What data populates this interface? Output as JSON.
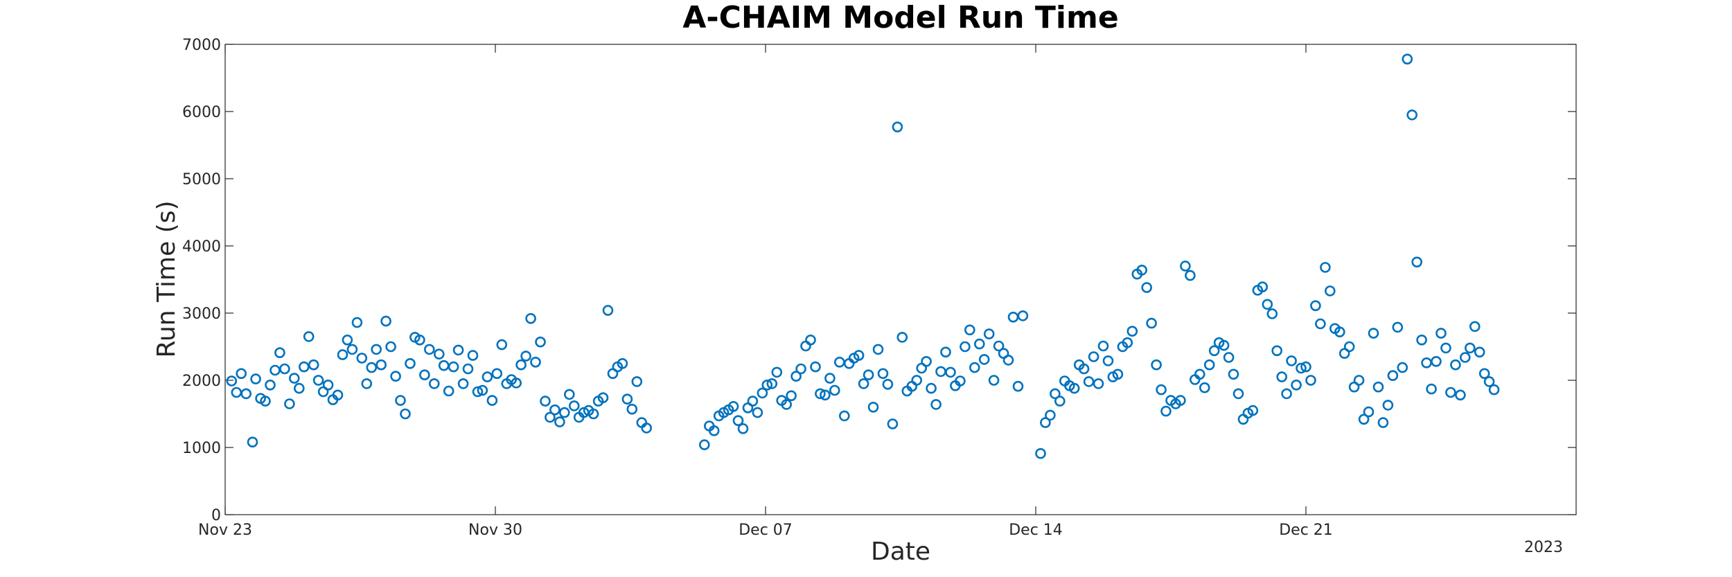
{
  "chart_data": {
    "type": "scatter",
    "title": "A-CHAIM Model Run Time",
    "xlabel": "Date",
    "ylabel": "Run Time (s)",
    "x_axis_type": "date",
    "xlim": [
      "2022-11-23 00:00",
      "2022-12-28 00:00"
    ],
    "ylim": [
      0,
      7000
    ],
    "xticks": [
      "Nov 23",
      "Nov 30",
      "Dec 07",
      "Dec 14",
      "Dec 21"
    ],
    "xtick_dates": [
      "2022-11-23",
      "2022-11-30",
      "2022-12-07",
      "2022-12-14",
      "2022-12-21"
    ],
    "yticks": [
      0,
      1000,
      2000,
      3000,
      4000,
      5000,
      6000,
      7000
    ],
    "year_label": "2023",
    "grid": false,
    "legend": "none",
    "marker_color": "#0072BD",
    "series": [
      {
        "values": [
          [
            "2022-11-23 04:00",
            1990
          ],
          [
            "2022-11-23 07:00",
            1820
          ],
          [
            "2022-11-23 10:00",
            2100
          ],
          [
            "2022-11-23 13:00",
            1800
          ],
          [
            "2022-11-23 17:00",
            1080
          ],
          [
            "2022-11-23 19:00",
            2020
          ],
          [
            "2022-11-23 22:00",
            1730
          ],
          [
            "2022-11-24 01:00",
            1690
          ],
          [
            "2022-11-24 04:00",
            1930
          ],
          [
            "2022-11-24 07:00",
            2150
          ],
          [
            "2022-11-24 10:00",
            2410
          ],
          [
            "2022-11-24 13:00",
            2170
          ],
          [
            "2022-11-24 16:00",
            1650
          ],
          [
            "2022-11-24 19:00",
            2030
          ],
          [
            "2022-11-24 22:00",
            1880
          ],
          [
            "2022-11-25 01:00",
            2200
          ],
          [
            "2022-11-25 04:00",
            2650
          ],
          [
            "2022-11-25 07:00",
            2230
          ],
          [
            "2022-11-25 10:00",
            2000
          ],
          [
            "2022-11-25 13:00",
            1830
          ],
          [
            "2022-11-25 16:00",
            1930
          ],
          [
            "2022-11-25 19:00",
            1710
          ],
          [
            "2022-11-25 22:00",
            1780
          ],
          [
            "2022-11-26 01:00",
            2380
          ],
          [
            "2022-11-26 04:00",
            2600
          ],
          [
            "2022-11-26 07:00",
            2460
          ],
          [
            "2022-11-26 10:00",
            2860
          ],
          [
            "2022-11-26 13:00",
            2330
          ],
          [
            "2022-11-26 16:00",
            1950
          ],
          [
            "2022-11-26 19:00",
            2190
          ],
          [
            "2022-11-26 22:00",
            2460
          ],
          [
            "2022-11-27 01:00",
            2230
          ],
          [
            "2022-11-27 04:00",
            2880
          ],
          [
            "2022-11-27 07:00",
            2500
          ],
          [
            "2022-11-27 10:00",
            2060
          ],
          [
            "2022-11-27 13:00",
            1700
          ],
          [
            "2022-11-27 16:00",
            1500
          ],
          [
            "2022-11-27 19:00",
            2250
          ],
          [
            "2022-11-27 22:00",
            2640
          ],
          [
            "2022-11-28 01:00",
            2600
          ],
          [
            "2022-11-28 04:00",
            2080
          ],
          [
            "2022-11-28 07:00",
            2460
          ],
          [
            "2022-11-28 10:00",
            1950
          ],
          [
            "2022-11-28 13:00",
            2390
          ],
          [
            "2022-11-28 16:00",
            2220
          ],
          [
            "2022-11-28 19:00",
            1840
          ],
          [
            "2022-11-28 22:00",
            2200
          ],
          [
            "2022-11-29 01:00",
            2450
          ],
          [
            "2022-11-29 04:00",
            1950
          ],
          [
            "2022-11-29 07:00",
            2170
          ],
          [
            "2022-11-29 10:00",
            2370
          ],
          [
            "2022-11-29 13:00",
            1830
          ],
          [
            "2022-11-29 16:00",
            1850
          ],
          [
            "2022-11-29 19:00",
            2050
          ],
          [
            "2022-11-29 22:00",
            1700
          ],
          [
            "2022-11-30 01:00",
            2100
          ],
          [
            "2022-11-30 04:00",
            2530
          ],
          [
            "2022-11-30 07:00",
            1950
          ],
          [
            "2022-11-30 10:00",
            2010
          ],
          [
            "2022-11-30 13:00",
            1960
          ],
          [
            "2022-11-30 16:00",
            2230
          ],
          [
            "2022-11-30 19:00",
            2360
          ],
          [
            "2022-11-30 22:00",
            2920
          ],
          [
            "2022-12-01 01:00",
            2270
          ],
          [
            "2022-12-01 04:00",
            2570
          ],
          [
            "2022-12-01 07:00",
            1690
          ],
          [
            "2022-12-01 10:00",
            1450
          ],
          [
            "2022-12-01 13:00",
            1560
          ],
          [
            "2022-12-01 16:00",
            1380
          ],
          [
            "2022-12-01 19:00",
            1520
          ],
          [
            "2022-12-01 22:00",
            1790
          ],
          [
            "2022-12-02 01:00",
            1620
          ],
          [
            "2022-12-02 04:00",
            1450
          ],
          [
            "2022-12-02 07:00",
            1520
          ],
          [
            "2022-12-02 10:00",
            1550
          ],
          [
            "2022-12-02 13:00",
            1500
          ],
          [
            "2022-12-02 16:00",
            1690
          ],
          [
            "2022-12-02 19:00",
            1740
          ],
          [
            "2022-12-02 22:00",
            3040
          ],
          [
            "2022-12-03 01:00",
            2100
          ],
          [
            "2022-12-03 04:00",
            2200
          ],
          [
            "2022-12-03 07:00",
            2250
          ],
          [
            "2022-12-03 10:00",
            1720
          ],
          [
            "2022-12-03 13:00",
            1570
          ],
          [
            "2022-12-03 16:00",
            1980
          ],
          [
            "2022-12-03 19:00",
            1370
          ],
          [
            "2022-12-03 22:00",
            1290
          ],
          [
            "2022-12-05 10:00",
            1040
          ],
          [
            "2022-12-05 13:00",
            1320
          ],
          [
            "2022-12-05 16:00",
            1250
          ],
          [
            "2022-12-05 19:00",
            1470
          ],
          [
            "2022-12-05 22:00",
            1520
          ],
          [
            "2022-12-06 01:00",
            1560
          ],
          [
            "2022-12-06 04:00",
            1610
          ],
          [
            "2022-12-06 07:00",
            1400
          ],
          [
            "2022-12-06 10:00",
            1280
          ],
          [
            "2022-12-06 13:00",
            1590
          ],
          [
            "2022-12-06 16:00",
            1690
          ],
          [
            "2022-12-06 19:00",
            1520
          ],
          [
            "2022-12-06 22:00",
            1810
          ],
          [
            "2022-12-07 01:00",
            1930
          ],
          [
            "2022-12-07 04:00",
            1950
          ],
          [
            "2022-12-07 07:00",
            2120
          ],
          [
            "2022-12-07 10:00",
            1700
          ],
          [
            "2022-12-07 13:00",
            1640
          ],
          [
            "2022-12-07 16:00",
            1770
          ],
          [
            "2022-12-07 19:00",
            2060
          ],
          [
            "2022-12-07 22:00",
            2170
          ],
          [
            "2022-12-08 01:00",
            2510
          ],
          [
            "2022-12-08 04:00",
            2600
          ],
          [
            "2022-12-08 07:00",
            2200
          ],
          [
            "2022-12-08 10:00",
            1800
          ],
          [
            "2022-12-08 13:00",
            1780
          ],
          [
            "2022-12-08 16:00",
            2030
          ],
          [
            "2022-12-08 19:00",
            1850
          ],
          [
            "2022-12-08 22:00",
            2270
          ],
          [
            "2022-12-09 01:00",
            1470
          ],
          [
            "2022-12-09 04:00",
            2250
          ],
          [
            "2022-12-09 07:00",
            2330
          ],
          [
            "2022-12-09 10:00",
            2370
          ],
          [
            "2022-12-09 13:00",
            1950
          ],
          [
            "2022-12-09 16:00",
            2080
          ],
          [
            "2022-12-09 19:00",
            1600
          ],
          [
            "2022-12-09 22:00",
            2460
          ],
          [
            "2022-12-10 01:00",
            2100
          ],
          [
            "2022-12-10 04:00",
            1940
          ],
          [
            "2022-12-10 07:00",
            1350
          ],
          [
            "2022-12-10 10:00",
            5770
          ],
          [
            "2022-12-10 13:00",
            2640
          ],
          [
            "2022-12-10 16:00",
            1840
          ],
          [
            "2022-12-10 19:00",
            1910
          ],
          [
            "2022-12-10 22:00",
            2000
          ],
          [
            "2022-12-11 01:00",
            2180
          ],
          [
            "2022-12-11 04:00",
            2280
          ],
          [
            "2022-12-11 07:00",
            1880
          ],
          [
            "2022-12-11 10:00",
            1640
          ],
          [
            "2022-12-11 13:00",
            2130
          ],
          [
            "2022-12-11 16:00",
            2420
          ],
          [
            "2022-12-11 19:00",
            2120
          ],
          [
            "2022-12-11 22:00",
            1920
          ],
          [
            "2022-12-12 01:00",
            1990
          ],
          [
            "2022-12-12 04:00",
            2500
          ],
          [
            "2022-12-12 07:00",
            2750
          ],
          [
            "2022-12-12 10:00",
            2190
          ],
          [
            "2022-12-12 13:00",
            2540
          ],
          [
            "2022-12-12 16:00",
            2310
          ],
          [
            "2022-12-12 19:00",
            2690
          ],
          [
            "2022-12-12 22:00",
            2000
          ],
          [
            "2022-12-13 01:00",
            2510
          ],
          [
            "2022-12-13 04:00",
            2400
          ],
          [
            "2022-12-13 07:00",
            2300
          ],
          [
            "2022-12-13 10:00",
            2940
          ],
          [
            "2022-12-13 13:00",
            1910
          ],
          [
            "2022-12-13 16:00",
            2960
          ],
          [
            "2022-12-14 03:00",
            910
          ],
          [
            "2022-12-14 06:00",
            1370
          ],
          [
            "2022-12-14 09:00",
            1480
          ],
          [
            "2022-12-14 12:00",
            1800
          ],
          [
            "2022-12-14 15:00",
            1690
          ],
          [
            "2022-12-14 18:00",
            1990
          ],
          [
            "2022-12-14 21:00",
            1920
          ],
          [
            "2022-12-15 00:00",
            1880
          ],
          [
            "2022-12-15 03:00",
            2230
          ],
          [
            "2022-12-15 06:00",
            2170
          ],
          [
            "2022-12-15 09:00",
            1980
          ],
          [
            "2022-12-15 12:00",
            2350
          ],
          [
            "2022-12-15 15:00",
            1950
          ],
          [
            "2022-12-15 18:00",
            2510
          ],
          [
            "2022-12-15 21:00",
            2290
          ],
          [
            "2022-12-16 00:00",
            2050
          ],
          [
            "2022-12-16 03:00",
            2090
          ],
          [
            "2022-12-16 06:00",
            2500
          ],
          [
            "2022-12-16 09:00",
            2560
          ],
          [
            "2022-12-16 12:00",
            2730
          ],
          [
            "2022-12-16 15:00",
            3580
          ],
          [
            "2022-12-16 18:00",
            3640
          ],
          [
            "2022-12-16 21:00",
            3380
          ],
          [
            "2022-12-17 00:00",
            2850
          ],
          [
            "2022-12-17 03:00",
            2230
          ],
          [
            "2022-12-17 06:00",
            1860
          ],
          [
            "2022-12-17 09:00",
            1540
          ],
          [
            "2022-12-17 12:00",
            1700
          ],
          [
            "2022-12-17 15:00",
            1650
          ],
          [
            "2022-12-17 18:00",
            1700
          ],
          [
            "2022-12-17 21:00",
            3700
          ],
          [
            "2022-12-18 00:00",
            3560
          ],
          [
            "2022-12-18 03:00",
            2010
          ],
          [
            "2022-12-18 06:00",
            2090
          ],
          [
            "2022-12-18 09:00",
            1890
          ],
          [
            "2022-12-18 12:00",
            2230
          ],
          [
            "2022-12-18 15:00",
            2440
          ],
          [
            "2022-12-18 18:00",
            2560
          ],
          [
            "2022-12-18 21:00",
            2520
          ],
          [
            "2022-12-19 00:00",
            2340
          ],
          [
            "2022-12-19 03:00",
            2090
          ],
          [
            "2022-12-19 06:00",
            1800
          ],
          [
            "2022-12-19 09:00",
            1420
          ],
          [
            "2022-12-19 12:00",
            1510
          ],
          [
            "2022-12-19 15:00",
            1550
          ],
          [
            "2022-12-19 18:00",
            3340
          ],
          [
            "2022-12-19 21:00",
            3390
          ],
          [
            "2022-12-20 00:00",
            3130
          ],
          [
            "2022-12-20 03:00",
            2990
          ],
          [
            "2022-12-20 06:00",
            2440
          ],
          [
            "2022-12-20 09:00",
            2050
          ],
          [
            "2022-12-20 12:00",
            1800
          ],
          [
            "2022-12-20 15:00",
            2290
          ],
          [
            "2022-12-20 18:00",
            1930
          ],
          [
            "2022-12-20 21:00",
            2180
          ],
          [
            "2022-12-21 00:00",
            2200
          ],
          [
            "2022-12-21 03:00",
            2000
          ],
          [
            "2022-12-21 06:00",
            3110
          ],
          [
            "2022-12-21 09:00",
            2840
          ],
          [
            "2022-12-21 12:00",
            3680
          ],
          [
            "2022-12-21 15:00",
            3330
          ],
          [
            "2022-12-21 18:00",
            2770
          ],
          [
            "2022-12-21 21:00",
            2720
          ],
          [
            "2022-12-22 00:00",
            2400
          ],
          [
            "2022-12-22 03:00",
            2500
          ],
          [
            "2022-12-22 06:00",
            1900
          ],
          [
            "2022-12-22 09:00",
            2000
          ],
          [
            "2022-12-22 12:00",
            1420
          ],
          [
            "2022-12-22 15:00",
            1530
          ],
          [
            "2022-12-22 18:00",
            2700
          ],
          [
            "2022-12-22 21:00",
            1900
          ],
          [
            "2022-12-23 00:00",
            1370
          ],
          [
            "2022-12-23 03:00",
            1630
          ],
          [
            "2022-12-23 06:00",
            2070
          ],
          [
            "2022-12-23 09:00",
            2790
          ],
          [
            "2022-12-23 12:00",
            2190
          ],
          [
            "2022-12-23 15:00",
            6780
          ],
          [
            "2022-12-23 18:00",
            5950
          ],
          [
            "2022-12-23 21:00",
            3760
          ],
          [
            "2022-12-24 00:00",
            2600
          ],
          [
            "2022-12-24 03:00",
            2260
          ],
          [
            "2022-12-24 06:00",
            1870
          ],
          [
            "2022-12-24 09:00",
            2280
          ],
          [
            "2022-12-24 12:00",
            2700
          ],
          [
            "2022-12-24 15:00",
            2480
          ],
          [
            "2022-12-24 18:00",
            1820
          ],
          [
            "2022-12-24 21:00",
            2230
          ],
          [
            "2022-12-25 00:00",
            1780
          ],
          [
            "2022-12-25 03:00",
            2340
          ],
          [
            "2022-12-25 06:00",
            2480
          ],
          [
            "2022-12-25 09:00",
            2800
          ],
          [
            "2022-12-25 12:00",
            2420
          ],
          [
            "2022-12-25 15:00",
            2100
          ],
          [
            "2022-12-25 18:00",
            1980
          ],
          [
            "2022-12-25 21:00",
            1860
          ]
        ]
      }
    ]
  }
}
